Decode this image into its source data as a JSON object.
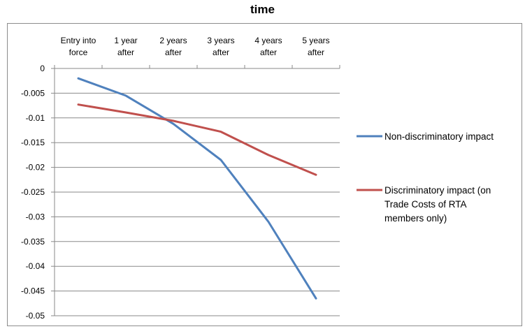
{
  "chart_data": {
    "type": "line",
    "title": "time",
    "categories": [
      [
        "Entry into",
        "force"
      ],
      [
        "1 year",
        "after"
      ],
      [
        "2 years",
        "after"
      ],
      [
        "3 years",
        "after"
      ],
      [
        "4 years",
        "after"
      ],
      [
        "5 years",
        "after"
      ]
    ],
    "ylim": [
      -0.05,
      0
    ],
    "yticks": [
      0,
      -0.005,
      -0.01,
      -0.015,
      -0.02,
      -0.025,
      -0.03,
      -0.035,
      -0.04,
      -0.045,
      -0.05
    ],
    "ytick_labels": [
      "0",
      "-0.005",
      "-0.01",
      "-0.015",
      "-0.02",
      "-0.025",
      "-0.03",
      "-0.035",
      "-0.04",
      "-0.045",
      "-0.05"
    ],
    "grid": true,
    "legend_position": "right",
    "series": [
      {
        "name": [
          "Non-discriminatory impact"
        ],
        "color": "#4f81bd",
        "values": [
          -0.002,
          -0.0055,
          -0.0112,
          -0.0185,
          -0.031,
          -0.0465
        ]
      },
      {
        "name": [
          "Discriminatory impact (on",
          "Trade Costs of RTA",
          "members only)"
        ],
        "color": "#c0504d",
        "values": [
          -0.0073,
          -0.0089,
          -0.0106,
          -0.0128,
          -0.0175,
          -0.0215
        ]
      }
    ]
  }
}
